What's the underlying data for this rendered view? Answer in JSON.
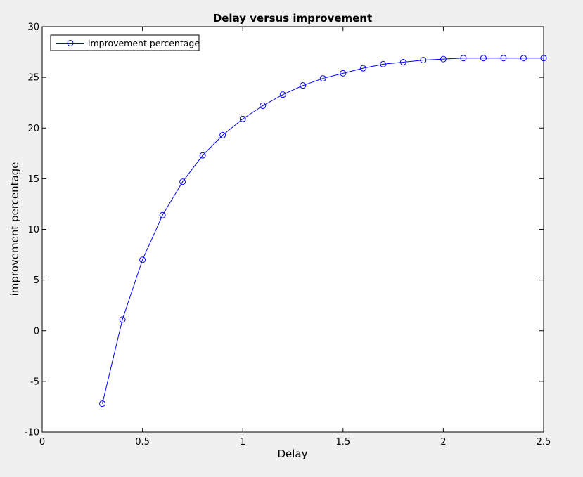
{
  "chart_data": {
    "type": "line",
    "title": "Delay versus improvement",
    "xlabel": "Delay",
    "ylabel": "improvement percentage",
    "xlim": [
      0,
      2.5
    ],
    "ylim": [
      -10,
      30
    ],
    "xticks": [
      "0",
      "0.5",
      "1",
      "1.5",
      "2",
      "2.5"
    ],
    "yticks": [
      "-10",
      "-5",
      "0",
      "5",
      "10",
      "15",
      "20",
      "25",
      "30"
    ],
    "grid": false,
    "legend_position": "top-left",
    "series": [
      {
        "name": "improvement percentage",
        "color": "#0000ff",
        "marker": "circle",
        "x": [
          0.3,
          0.4,
          0.5,
          0.6,
          0.7,
          0.8,
          0.9,
          1.0,
          1.1,
          1.2,
          1.3,
          1.4,
          1.5,
          1.6,
          1.7,
          1.8,
          1.9,
          2.0,
          2.1,
          2.2,
          2.3,
          2.4,
          2.5
        ],
        "y": [
          -7.2,
          1.1,
          7.0,
          11.4,
          14.7,
          17.3,
          19.3,
          20.9,
          22.2,
          23.3,
          24.2,
          24.9,
          25.4,
          25.9,
          26.3,
          26.5,
          26.7,
          26.8,
          26.9,
          26.9,
          26.9,
          26.9,
          26.9
        ]
      }
    ]
  }
}
